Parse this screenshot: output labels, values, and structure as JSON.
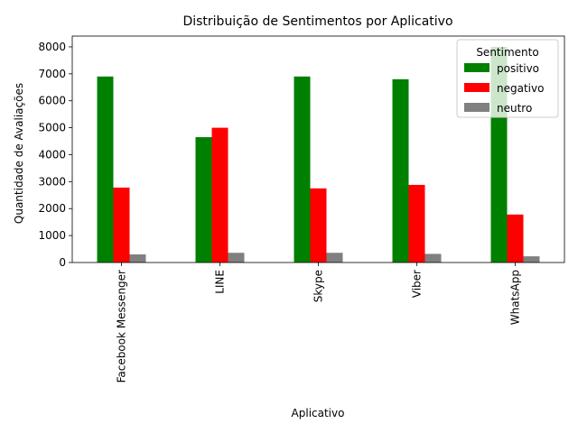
{
  "chart_data": {
    "type": "bar",
    "title": "Distribuição de Sentimentos por Aplicativo",
    "xlabel": "Aplicativo",
    "ylabel": "Quantidade de Avaliações",
    "categories": [
      "Facebook Messenger",
      "LINE",
      "Skype",
      "Viber",
      "WhatsApp"
    ],
    "series": [
      {
        "name": "positivo",
        "color": "#008000",
        "values": [
          6900,
          4650,
          6900,
          6800,
          8000
        ]
      },
      {
        "name": "negativo",
        "color": "#ff0000",
        "values": [
          2780,
          5000,
          2750,
          2880,
          1780
        ]
      },
      {
        "name": "neutro",
        "color": "#808080",
        "values": [
          300,
          360,
          360,
          320,
          230
        ]
      }
    ],
    "ylim": [
      0,
      8400
    ],
    "yticks": [
      0,
      1000,
      2000,
      3000,
      4000,
      5000,
      6000,
      7000,
      8000
    ],
    "legend": {
      "title": "Sentimento",
      "placement": "top-right"
    },
    "grid": false
  }
}
